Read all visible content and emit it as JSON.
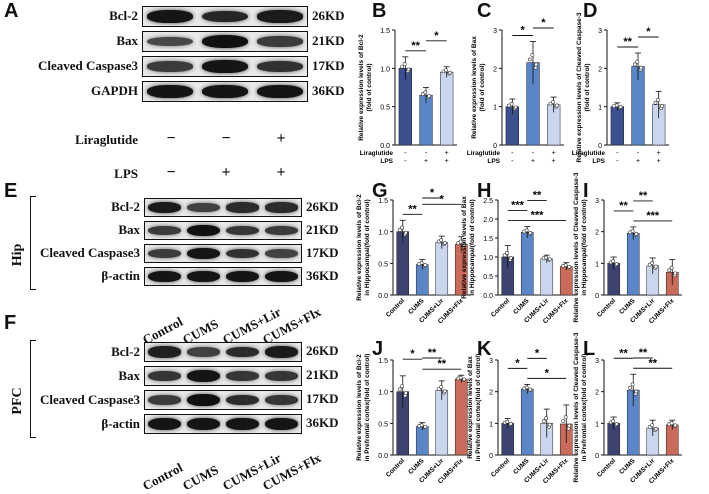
{
  "figure": {
    "panel_letters": [
      "A",
      "B",
      "C",
      "D",
      "E",
      "F",
      "G",
      "H",
      "I",
      "J",
      "K",
      "L"
    ],
    "blot_A": {
      "rows": [
        {
          "label": "Bcl-2",
          "kd": "26KD",
          "intensity": [
            0.9,
            0.75,
            0.85
          ]
        },
        {
          "label": "Bax",
          "kd": "21KD",
          "intensity": [
            0.45,
            0.95,
            0.55
          ]
        },
        {
          "label": "Cleaved Caspase3",
          "kd": "17KD",
          "intensity": [
            0.55,
            0.9,
            0.65
          ]
        },
        {
          "label": "GAPDH",
          "kd": "36KD",
          "intensity": [
            0.9,
            0.9,
            0.9
          ]
        }
      ],
      "treatments": [
        {
          "label": "Liraglutide",
          "signs": [
            "−",
            "−",
            "+"
          ]
        },
        {
          "label": "LPS",
          "signs": [
            "−",
            "+",
            "+"
          ]
        }
      ]
    },
    "blot_E": {
      "region": "Hip",
      "rows": [
        {
          "label": "Bcl-2",
          "kd": "26KD",
          "intensity": [
            0.85,
            0.5,
            0.7,
            0.7
          ]
        },
        {
          "label": "Bax",
          "kd": "21KD",
          "intensity": [
            0.55,
            0.95,
            0.6,
            0.55
          ]
        },
        {
          "label": "Cleaved Caspase3",
          "kd": "17KD",
          "intensity": [
            0.55,
            0.9,
            0.65,
            0.5
          ]
        },
        {
          "label": "β-actin",
          "kd": "36KD",
          "intensity": [
            0.9,
            0.9,
            0.9,
            0.9
          ]
        }
      ],
      "groups": [
        "Control",
        "CUMS",
        "CUMS+Lir",
        "CUMS+Flx"
      ]
    },
    "blot_F": {
      "region": "PFC",
      "rows": [
        {
          "label": "Bcl-2",
          "kd": "26KD",
          "intensity": [
            0.8,
            0.5,
            0.7,
            0.85
          ]
        },
        {
          "label": "Bax",
          "kd": "21KD",
          "intensity": [
            0.6,
            0.9,
            0.6,
            0.6
          ]
        },
        {
          "label": "Cleaved Caspase3",
          "kd": "17KD",
          "intensity": [
            0.55,
            0.95,
            0.7,
            0.6
          ]
        },
        {
          "label": "β-actin",
          "kd": "36KD",
          "intensity": [
            0.9,
            0.9,
            0.9,
            0.9
          ]
        }
      ],
      "groups": [
        "Control",
        "CUMS",
        "CUMS+Lir",
        "CUMS+Flx"
      ]
    }
  },
  "chart_data": [
    {
      "panel": "B",
      "type": "bar",
      "ylabel": "Relative expression levels of Bcl-2 (fold of control)",
      "ylim": [
        0,
        1.5
      ],
      "yticks": [
        "0.0",
        "0.5",
        "1.0",
        "1.5"
      ],
      "values": [
        1.0,
        0.65,
        0.95
      ],
      "errors": [
        0.15,
        0.1,
        0.07
      ],
      "colors": [
        "#3c4f8e",
        "#5a86c8",
        "#c9d6ee"
      ],
      "treatment_rows": [
        {
          "label": "Liraglutide",
          "signs": [
            "-",
            "-",
            "+"
          ]
        },
        {
          "label": "LPS",
          "signs": [
            "-",
            "+",
            "+"
          ]
        }
      ],
      "sig": [
        {
          "from": 0,
          "to": 1,
          "text": "**"
        },
        {
          "from": 1,
          "to": 2,
          "text": "*"
        }
      ]
    },
    {
      "panel": "C",
      "type": "bar",
      "ylabel": "Relative expression levels of Bax (fold of control)",
      "ylim": [
        0,
        3
      ],
      "yticks": [
        "0",
        "1",
        "2",
        "3"
      ],
      "values": [
        1.0,
        2.15,
        1.05
      ],
      "errors": [
        0.2,
        0.55,
        0.2
      ],
      "colors": [
        "#3c4f8e",
        "#5a86c8",
        "#c9d6ee"
      ],
      "treatment_rows": [
        {
          "label": "Liraglutide",
          "signs": [
            "-",
            "-",
            "+"
          ]
        },
        {
          "label": "LPS",
          "signs": [
            "-",
            "+",
            "+"
          ]
        }
      ],
      "sig": [
        {
          "from": 0,
          "to": 1,
          "text": "*"
        },
        {
          "from": 1,
          "to": 2,
          "text": "*"
        }
      ]
    },
    {
      "panel": "D",
      "type": "bar",
      "ylabel": "Relative expression levels of Cleaved Caspase-3 (fold of control)",
      "ylim": [
        0,
        3
      ],
      "yticks": [
        "0",
        "1",
        "2",
        "3"
      ],
      "values": [
        1.0,
        2.05,
        1.05
      ],
      "errors": [
        0.1,
        0.35,
        0.35
      ],
      "colors": [
        "#3c4f8e",
        "#5a86c8",
        "#c9d6ee"
      ],
      "treatment_rows": [
        {
          "label": "Liraglutide",
          "signs": [
            "-",
            "-",
            "+"
          ]
        },
        {
          "label": "LPS",
          "signs": [
            "-",
            "+",
            "+"
          ]
        }
      ],
      "sig": [
        {
          "from": 0,
          "to": 1,
          "text": "**"
        },
        {
          "from": 1,
          "to": 2,
          "text": "*"
        }
      ]
    },
    {
      "panel": "G",
      "type": "bar",
      "ylabel": "Relative expression levels of Bcl-2 in Hippocampal(fold of control)",
      "ylim": [
        0,
        1.5
      ],
      "yticks": [
        "0.0",
        "0.5",
        "1.0",
        "1.5"
      ],
      "categories": [
        "Control",
        "CUMS",
        "CUMS+Lir",
        "CUMS+Flx"
      ],
      "values": [
        1.0,
        0.48,
        0.83,
        0.8
      ],
      "errors": [
        0.18,
        0.08,
        0.1,
        0.12
      ],
      "colors": [
        "#3c4370",
        "#5a86c8",
        "#c9d6ee",
        "#c96a5a"
      ],
      "sig": [
        {
          "from": 0,
          "to": 1,
          "text": "**"
        },
        {
          "from": 1,
          "to": 3,
          "text": "*"
        },
        {
          "from": 1,
          "to": 2,
          "text": "*"
        }
      ]
    },
    {
      "panel": "H",
      "type": "bar",
      "ylabel": "Relative expression levels of Bax in Hippocampal(fold of control)",
      "ylim": [
        0,
        2.5
      ],
      "yticks": [
        "0.0",
        "0.5",
        "1.0",
        "1.5",
        "2.0",
        "2.5"
      ],
      "categories": [
        "Control",
        "CUMS",
        "CUMS+Lir",
        "CUMS+Flx"
      ],
      "values": [
        1.0,
        1.65,
        0.95,
        0.75
      ],
      "errors": [
        0.3,
        0.15,
        0.1,
        0.1
      ],
      "colors": [
        "#3c4370",
        "#5a86c8",
        "#c9d6ee",
        "#c96a5a"
      ],
      "sig": [
        {
          "from": 0,
          "to": 3,
          "text": "***"
        },
        {
          "from": 0,
          "to": 1,
          "text": "***"
        },
        {
          "from": 1,
          "to": 2,
          "text": "**"
        }
      ]
    },
    {
      "panel": "I",
      "type": "bar",
      "ylabel": "Relative expression levels of Cleaved Caspase-3 in Hippocampal(fold of control)",
      "ylim": [
        0,
        3
      ],
      "yticks": [
        "0",
        "1",
        "2",
        "3"
      ],
      "categories": [
        "Control",
        "CUMS",
        "CUMS+Lir",
        "CUMS+Flx"
      ],
      "values": [
        1.0,
        1.95,
        0.92,
        0.72
      ],
      "errors": [
        0.2,
        0.2,
        0.25,
        0.4
      ],
      "colors": [
        "#3c4370",
        "#5a86c8",
        "#c9d6ee",
        "#c96a5a"
      ],
      "sig": [
        {
          "from": 1,
          "to": 3,
          "text": "***"
        },
        {
          "from": 0,
          "to": 1,
          "text": "**"
        },
        {
          "from": 1,
          "to": 2,
          "text": "**"
        }
      ]
    },
    {
      "panel": "J",
      "type": "bar",
      "ylabel": "Relative expression levels of Bcl-2 in Prefrontal cortex(fold of control)",
      "ylim": [
        0,
        1.5
      ],
      "yticks": [
        "0.0",
        "0.5",
        "1.0",
        "1.5"
      ],
      "categories": [
        "Control",
        "CUMS",
        "CUMS+Lir",
        "CUMS+Flx"
      ],
      "values": [
        1.0,
        0.45,
        1.02,
        1.2
      ],
      "errors": [
        0.25,
        0.06,
        0.15,
        0.06
      ],
      "colors": [
        "#3c4370",
        "#5a86c8",
        "#c9d6ee",
        "#c96a5a"
      ],
      "sig": [
        {
          "from": 1,
          "to": 3,
          "text": "**"
        },
        {
          "from": 0,
          "to": 1,
          "text": "*"
        },
        {
          "from": 1,
          "to": 2,
          "text": "**"
        }
      ]
    },
    {
      "panel": "K",
      "type": "bar",
      "ylabel": "Relative expression levels of Bax in Prefrontal cortex(fold of control)",
      "ylim": [
        0,
        3
      ],
      "yticks": [
        "0",
        "1",
        "2",
        "3"
      ],
      "categories": [
        "Control",
        "CUMS",
        "CUMS+Lir",
        "CUMS+Flx"
      ],
      "values": [
        1.0,
        2.08,
        1.0,
        0.98
      ],
      "errors": [
        0.15,
        0.15,
        0.45,
        0.6
      ],
      "colors": [
        "#3c4370",
        "#5a86c8",
        "#c9d6ee",
        "#c96a5a"
      ],
      "sig": [
        {
          "from": 1,
          "to": 3,
          "text": "*"
        },
        {
          "from": 0,
          "to": 1,
          "text": "*"
        },
        {
          "from": 1,
          "to": 2,
          "text": "*"
        }
      ]
    },
    {
      "panel": "L",
      "type": "bar",
      "ylabel": "Relative expression levels of Cleaved Caspase-3 in Prefrontal cortex(fold of control)",
      "ylim": [
        0,
        3
      ],
      "yticks": [
        "0",
        "1",
        "2",
        "3"
      ],
      "categories": [
        "Control",
        "CUMS",
        "CUMS+Lir",
        "CUMS+Flx"
      ],
      "values": [
        1.0,
        2.05,
        0.85,
        0.95
      ],
      "errors": [
        0.2,
        0.5,
        0.25,
        0.15
      ],
      "colors": [
        "#3c4370",
        "#5a86c8",
        "#c9d6ee",
        "#c96a5a"
      ],
      "sig": [
        {
          "from": 1,
          "to": 3,
          "text": "**"
        },
        {
          "from": 0,
          "to": 1,
          "text": "**"
        },
        {
          "from": 1,
          "to": 2,
          "text": "**"
        }
      ]
    }
  ]
}
